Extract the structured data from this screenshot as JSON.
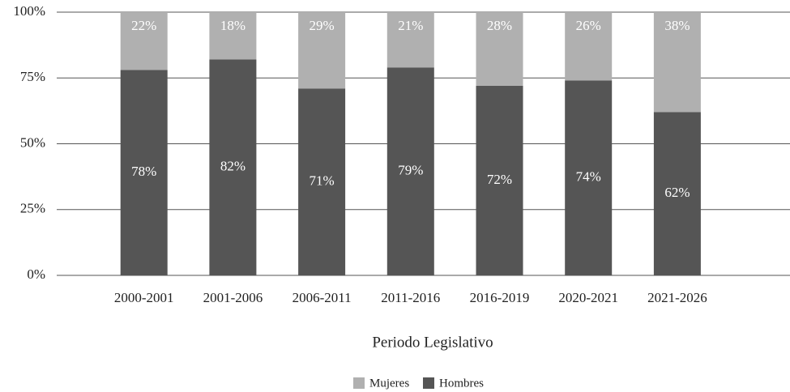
{
  "chart_data": {
    "type": "stacked_bar",
    "categories": [
      "2000-2001",
      "2001-2006",
      "2006-2011",
      "2011-2016",
      "2016-2019",
      "2020-2021",
      "2021-2026"
    ],
    "series": [
      {
        "name": "Hombres",
        "color": "#555555",
        "values": [
          78,
          82,
          71,
          79,
          72,
          74,
          62
        ],
        "value_labels": [
          "78%",
          "82%",
          "71%",
          "79%",
          "72%",
          "74%",
          "62%"
        ]
      },
      {
        "name": "Mujeres",
        "color": "#b0b0b0",
        "values": [
          22,
          18,
          29,
          21,
          28,
          26,
          38
        ],
        "value_labels": [
          "22%",
          "18%",
          "29%",
          "21%",
          "28%",
          "26%",
          "38%"
        ]
      }
    ],
    "x_label": "Periodo Legislativo",
    "ylim": [
      0,
      100
    ],
    "yticks": [
      {
        "value": 0,
        "label": "0%"
      },
      {
        "value": 25,
        "label": "25%"
      },
      {
        "value": 50,
        "label": "50%"
      },
      {
        "value": 75,
        "label": "75%"
      },
      {
        "value": 100,
        "label": "100%"
      }
    ],
    "grid": true,
    "legend": "bottom"
  }
}
